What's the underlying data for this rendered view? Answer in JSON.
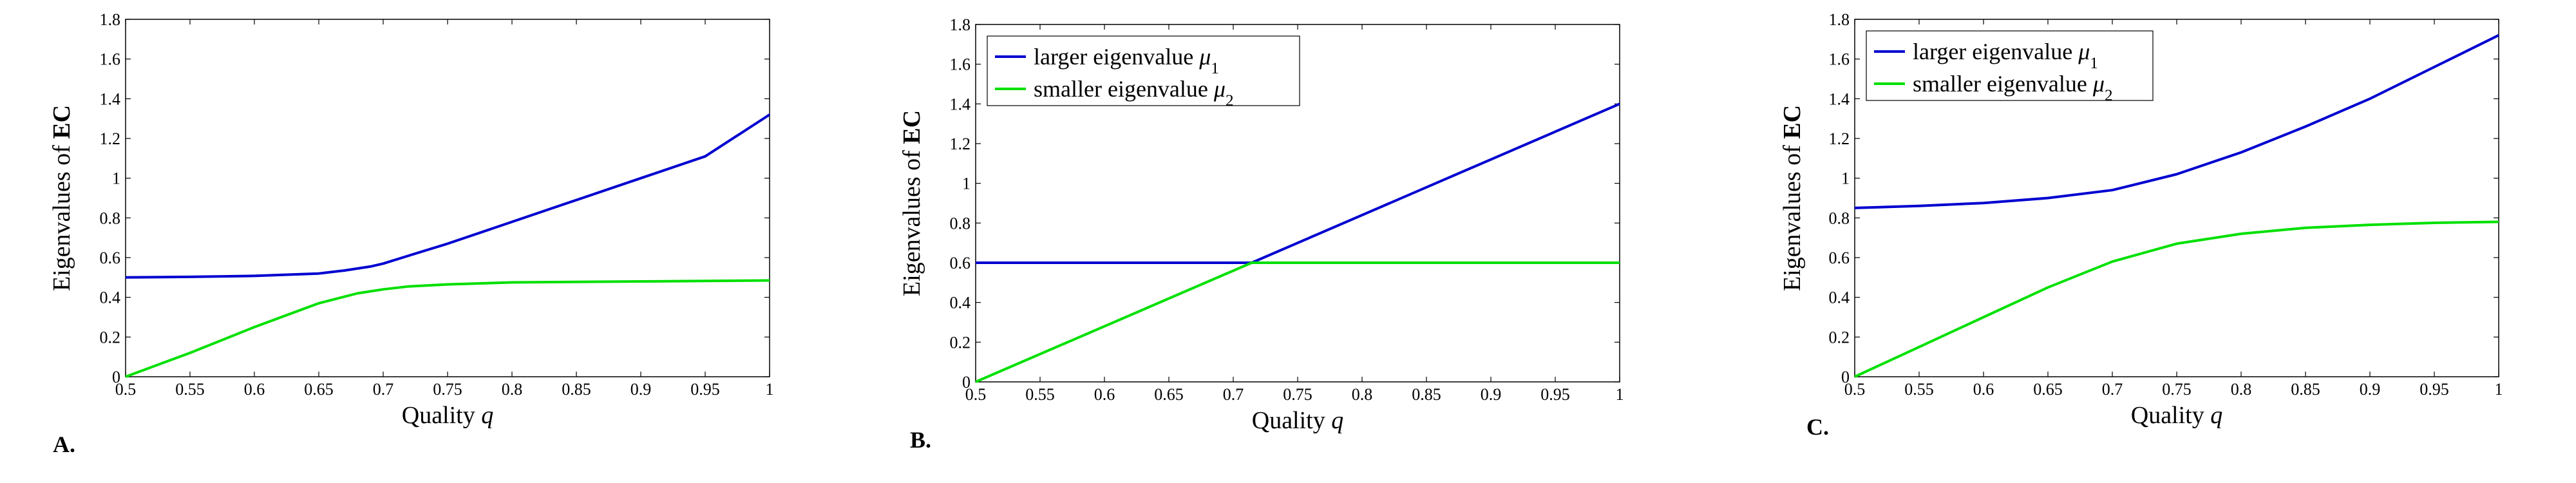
{
  "colors": {
    "series_1": "#0000d0",
    "series_2": "#00e000"
  },
  "chart_data": [
    {
      "type": "line",
      "panel_label": "A.",
      "xlabel": "Quality q",
      "ylabel": "Eigenvalues of EC",
      "xlim": [
        0.5,
        1
      ],
      "ylim": [
        0,
        1.8
      ],
      "xticks": [
        "0.5",
        "0.55",
        "0.6",
        "0.65",
        "0.7",
        "0.75",
        "0.8",
        "0.85",
        "0.9",
        "0.95",
        "1"
      ],
      "yticks": [
        "0",
        "0.2",
        "0.4",
        "0.6",
        "0.8",
        "1",
        "1.2",
        "1.4",
        "1.6",
        "1.8"
      ],
      "grid": false,
      "legend": null,
      "series": [
        {
          "x": [
            0.5,
            0.55,
            0.6,
            0.65,
            0.67,
            0.69,
            0.7,
            0.72,
            0.75,
            0.8,
            0.85,
            0.9,
            0.95,
            1
          ],
          "y": [
            0.5,
            0.503,
            0.508,
            0.52,
            0.535,
            0.555,
            0.57,
            0.61,
            0.67,
            0.78,
            0.89,
            1.0,
            1.11,
            1.32
          ]
        },
        {
          "x": [
            0.5,
            0.55,
            0.6,
            0.65,
            0.68,
            0.7,
            0.72,
            0.75,
            0.8,
            0.9,
            1
          ],
          "y": [
            0.0,
            0.12,
            0.25,
            0.37,
            0.42,
            0.44,
            0.455,
            0.465,
            0.475,
            0.48,
            0.485
          ]
        }
      ]
    },
    {
      "type": "line",
      "panel_label": "B.",
      "xlabel": "Quality q",
      "ylabel": "Eigenvalues of EC",
      "xlim": [
        0.5,
        1
      ],
      "ylim": [
        0,
        1.8
      ],
      "xticks": [
        "0.5",
        "0.55",
        "0.6",
        "0.65",
        "0.7",
        "0.75",
        "0.8",
        "0.85",
        "0.9",
        "0.95",
        "1"
      ],
      "yticks": [
        "0",
        "0.2",
        "0.4",
        "0.6",
        "0.8",
        "1",
        "1.2",
        "1.4",
        "1.6",
        "1.8"
      ],
      "grid": false,
      "legend": "top-left",
      "series": [
        {
          "name": "larger eigenvalue μ₁",
          "x": [
            0.5,
            0.7143,
            1
          ],
          "y": [
            0.6,
            0.6,
            1.4
          ]
        },
        {
          "name": "smaller eigenvalue μ₂",
          "x": [
            0.5,
            0.7143,
            1
          ],
          "y": [
            0.0,
            0.6,
            0.6
          ]
        }
      ]
    },
    {
      "type": "line",
      "panel_label": "C.",
      "xlabel": "Quality q",
      "ylabel": "Eigenvalues of EC",
      "xlim": [
        0.5,
        1
      ],
      "ylim": [
        0,
        1.8
      ],
      "xticks": [
        "0.5",
        "0.55",
        "0.6",
        "0.65",
        "0.7",
        "0.75",
        "0.8",
        "0.85",
        "0.9",
        "0.95",
        "1"
      ],
      "yticks": [
        "0",
        "0.2",
        "0.4",
        "0.6",
        "0.8",
        "1",
        "1.2",
        "1.4",
        "1.6",
        "1.8"
      ],
      "grid": false,
      "legend": "top-left",
      "series": [
        {
          "name": "larger eigenvalue μ₁",
          "x": [
            0.5,
            0.55,
            0.6,
            0.65,
            0.7,
            0.75,
            0.8,
            0.85,
            0.9,
            0.95,
            1
          ],
          "y": [
            0.85,
            0.86,
            0.875,
            0.9,
            0.94,
            1.02,
            1.13,
            1.26,
            1.4,
            1.56,
            1.72
          ]
        },
        {
          "name": "smaller eigenvalue μ₂",
          "x": [
            0.5,
            0.55,
            0.6,
            0.65,
            0.7,
            0.75,
            0.8,
            0.85,
            0.9,
            0.95,
            1
          ],
          "y": [
            0.0,
            0.15,
            0.3,
            0.45,
            0.58,
            0.67,
            0.72,
            0.75,
            0.765,
            0.775,
            0.78
          ]
        }
      ]
    }
  ]
}
